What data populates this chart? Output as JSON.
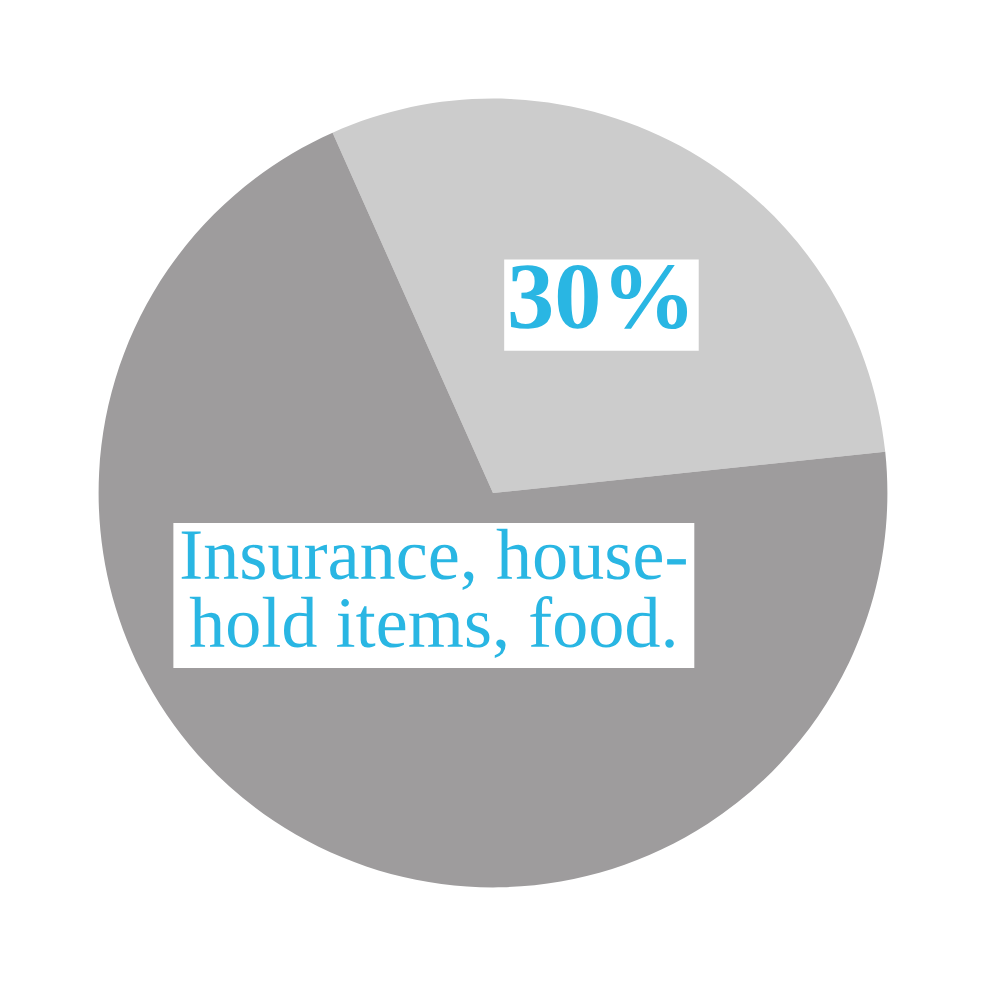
{
  "chart_data": {
    "type": "pie",
    "categories": [
      null,
      "Insurance, house-\nhold items, food."
    ],
    "values": [
      30,
      70
    ],
    "colors": [
      "#cccccc",
      "#9e9c9d"
    ],
    "value_labels": [
      "30%",
      null
    ],
    "legend": false
  }
}
